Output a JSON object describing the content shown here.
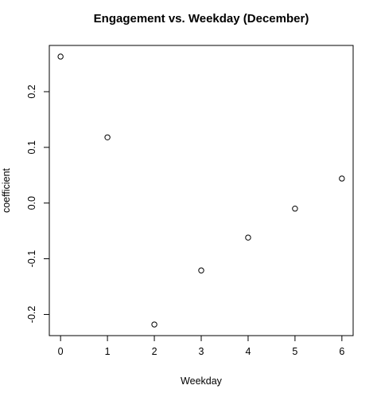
{
  "chart_data": {
    "type": "scatter",
    "title": "Engagement vs. Weekday (December)",
    "xlabel": "Weekday",
    "ylabel": "coefficient",
    "x": [
      0,
      1,
      2,
      3,
      4,
      5,
      6
    ],
    "y": [
      0.263,
      0.118,
      -0.218,
      -0.121,
      -0.062,
      -0.01,
      0.044
    ],
    "xlim": [
      -0.24,
      6.24
    ],
    "ylim": [
      -0.238,
      0.283
    ],
    "xticks": [
      0,
      1,
      2,
      3,
      4,
      5,
      6
    ],
    "xtick_labels": [
      "0",
      "1",
      "2",
      "3",
      "4",
      "5",
      "6"
    ],
    "yticks": [
      -0.2,
      -0.1,
      0.0,
      0.1,
      0.2
    ],
    "ytick_labels": [
      "-0.2",
      "-0.1",
      "0.0",
      "0.1",
      "0.2"
    ],
    "grid": false,
    "marker": "open-circle",
    "colors": {
      "foreground": "#000000",
      "background": "#ffffff"
    }
  }
}
